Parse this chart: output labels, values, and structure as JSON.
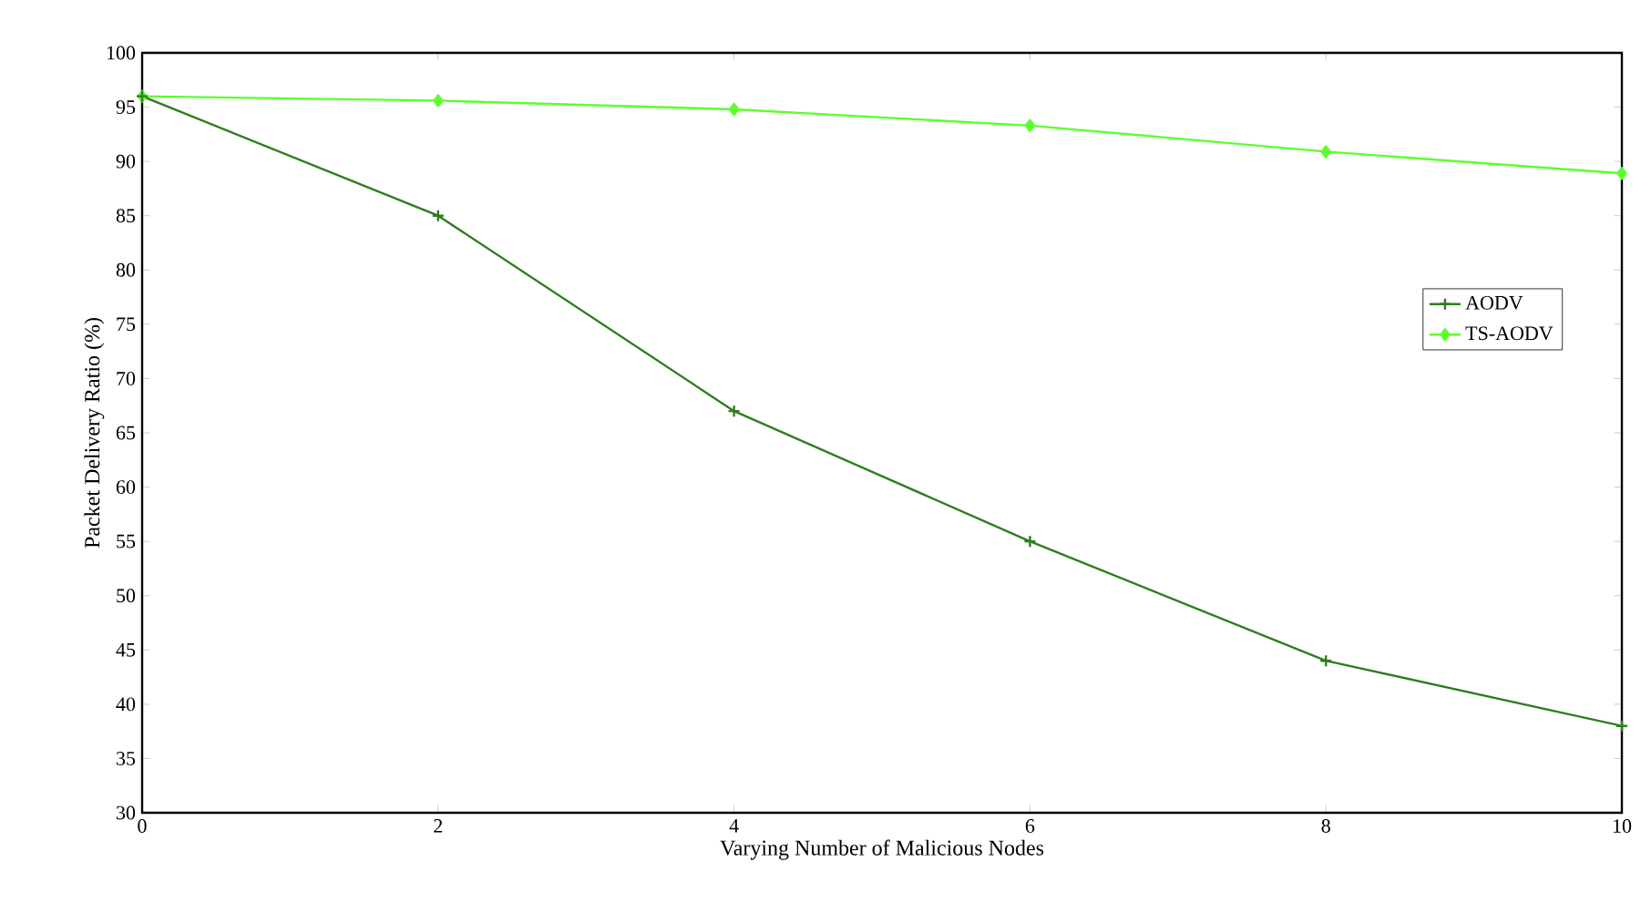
{
  "chart_data": {
    "type": "line",
    "xlabel": "Varying Number of Malicious Nodes",
    "ylabel": "Packet Delivery Ratio (%)",
    "x": [
      0,
      2,
      4,
      6,
      8,
      10
    ],
    "series": [
      {
        "name": "AODV",
        "color": "#2e7d1f",
        "marker": "cross",
        "values": [
          96,
          85,
          67,
          55,
          44,
          38
        ]
      },
      {
        "name": "TS-AODV",
        "color": "#5cff2e",
        "marker": "diamond",
        "values": [
          96,
          95.6,
          94.8,
          93.3,
          90.9,
          88.9
        ]
      }
    ],
    "xlim": [
      0,
      10
    ],
    "ylim": [
      30,
      100
    ],
    "xticks": [
      0,
      2,
      4,
      6,
      8,
      10
    ],
    "yticks": [
      30,
      35,
      40,
      45,
      50,
      55,
      60,
      65,
      70,
      75,
      80,
      85,
      90,
      95,
      100
    ],
    "legend": "right",
    "grid": false,
    "line_style": "solid"
  }
}
